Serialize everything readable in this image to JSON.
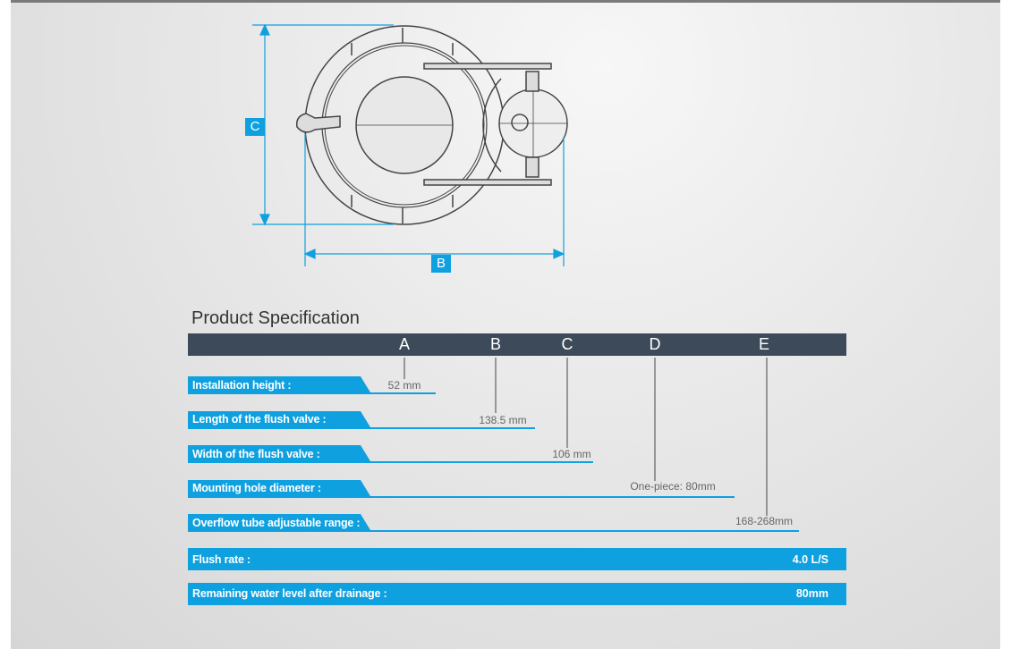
{
  "diagram": {
    "dim_c": "C",
    "dim_b": "B"
  },
  "title": "Product Specification",
  "columns": [
    "A",
    "B",
    "C",
    "D",
    "E"
  ],
  "rows": [
    {
      "label": "Installation height :",
      "value": "52 mm"
    },
    {
      "label": "Length of the flush valve :",
      "value": "138.5 mm"
    },
    {
      "label": "Width of the flush valve :",
      "value": "106 mm"
    },
    {
      "label": "Mounting hole diameter :",
      "value": "One-piece: 80mm"
    },
    {
      "label": "Overflow tube adjustable range :",
      "value": "168-268mm"
    }
  ],
  "full_rows": [
    {
      "label": "Flush rate :",
      "value": "4.0 L/S"
    },
    {
      "label": "Remaining water level after drainage :",
      "value": "80mm"
    }
  ],
  "colors": {
    "accent": "#0fa0e0",
    "header": "#3d4a59"
  }
}
